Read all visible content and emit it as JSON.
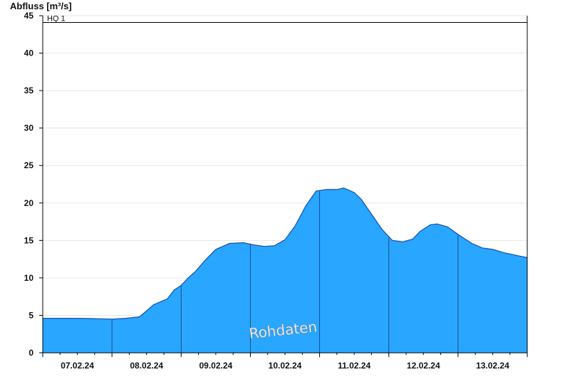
{
  "chart_data": {
    "type": "area",
    "ylabel": "Abfluss [m³/s]",
    "ylim": [
      0,
      45
    ],
    "yticks": [
      0,
      5,
      10,
      15,
      20,
      25,
      30,
      35,
      40,
      45
    ],
    "grid": true,
    "x_day_labels": [
      "07.02.24",
      "08.02.24",
      "09.02.24",
      "10.02.24",
      "11.02.24",
      "12.02.24",
      "13.02.24"
    ],
    "watermark": "Rohdaten",
    "reference_lines": [
      {
        "label": "HQ 1",
        "value": 44.1
      }
    ],
    "colors": {
      "area": "#29a6ff",
      "outline": "#1550a8",
      "divider": "#1a4f8a",
      "axis": "#000000",
      "grid": "#e6e6e6"
    },
    "series": [
      {
        "x_days": [
          0.0,
          0.3,
          0.5,
          0.8,
          1.0,
          1.2,
          1.4,
          1.6,
          1.8,
          1.9,
          2.0,
          2.1,
          2.2,
          2.35,
          2.5,
          2.7,
          2.9,
          3.05,
          3.2,
          3.35,
          3.5,
          3.65,
          3.8,
          3.95,
          4.1,
          4.25,
          4.35,
          4.5,
          4.6,
          4.75,
          4.9,
          5.05,
          5.2,
          5.35,
          5.45,
          5.6,
          5.7,
          5.85,
          6.0,
          6.2,
          6.35,
          6.5,
          6.65,
          6.85,
          7.0
        ],
        "y": [
          4.6,
          4.6,
          4.6,
          4.55,
          4.5,
          4.6,
          4.8,
          6.4,
          7.2,
          8.4,
          9.0,
          10.0,
          10.8,
          12.4,
          13.8,
          14.6,
          14.7,
          14.4,
          14.2,
          14.3,
          15.1,
          17.0,
          19.6,
          21.6,
          21.8,
          21.8,
          22.0,
          21.4,
          20.5,
          18.5,
          16.5,
          15.0,
          14.8,
          15.2,
          16.2,
          17.1,
          17.2,
          16.8,
          15.8,
          14.6,
          14.0,
          13.8,
          13.4,
          13.0,
          12.7
        ]
      },
      {
        "x_days": [
          6.65,
          6.85,
          7.0
        ],
        "y": [
          13.4,
          13.0,
          12.7
        ]
      }
    ]
  }
}
